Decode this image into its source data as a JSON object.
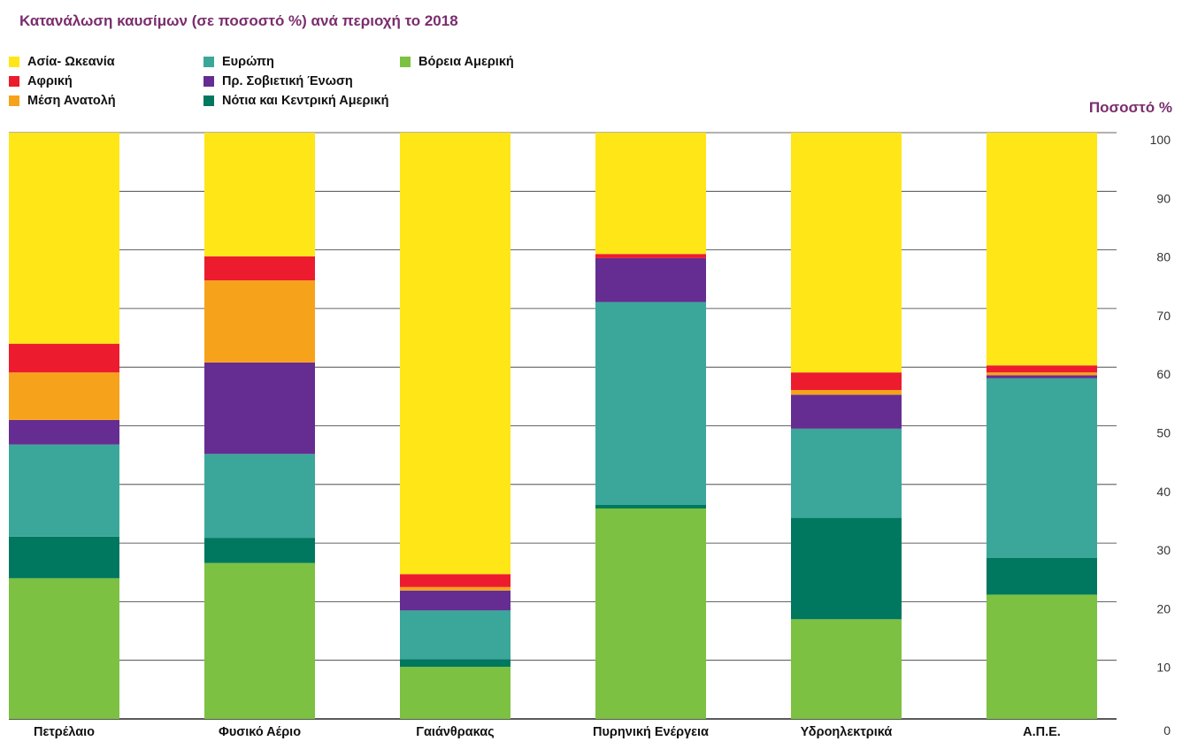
{
  "chart_data": {
    "type": "bar",
    "stacked": true,
    "title": "Κατανάλωση καυσίμων (σε ποσοστό %) ανά περιοχή το 2018",
    "ylabel": "Ποσοστό %",
    "ylim": [
      0,
      100
    ],
    "yticks": [
      0,
      10,
      20,
      30,
      40,
      50,
      60,
      70,
      80,
      90,
      100
    ],
    "grid": true,
    "legend_position": "top-left",
    "categories": [
      "Πετρέλαιο",
      "Φυσικό Αέριο",
      "Γαιάνθρακας",
      "Πυρηνική Ενέργεια",
      "Υδροηλεκτρικά",
      "Α.Π.Ε."
    ],
    "series": [
      {
        "name": "Βόρεια Αμερική",
        "color": "#7cc142",
        "values": [
          24,
          26.6,
          8.9,
          35.9,
          17,
          21.2
        ]
      },
      {
        "name": "Νότια και Κεντρική Αμερική",
        "color": "#00775f",
        "values": [
          7.1,
          4.3,
          1.3,
          0.6,
          17.3,
          6.3
        ]
      },
      {
        "name": "Ευρώπη",
        "color": "#3aa79a",
        "values": [
          15.7,
          14.3,
          8.3,
          34.6,
          15.2,
          30.6
        ]
      },
      {
        "name": "Πρ. Σοβιετική Ένωση",
        "color": "#652d91",
        "values": [
          4.2,
          15.6,
          3.4,
          7.5,
          5.8,
          0.5
        ]
      },
      {
        "name": "Μέση Ανατολή",
        "color": "#f7a21b",
        "values": [
          8.1,
          14,
          0.6,
          0,
          0.8,
          0.5
        ]
      },
      {
        "name": "Αφρική",
        "color": "#ec1c2e",
        "values": [
          4.9,
          4.1,
          2.2,
          0.7,
          3,
          1.2
        ]
      },
      {
        "name": "Ασία- Ωκεανία",
        "color": "#ffe617",
        "values": [
          36,
          21.1,
          75.3,
          20.7,
          40.9,
          39.7
        ]
      }
    ]
  },
  "legend_items": [
    {
      "label": "Ασία- Ωκεανία",
      "color": "#ffe617"
    },
    {
      "label": "Αφρική",
      "color": "#ec1c2e"
    },
    {
      "label": "Μέση Ανατολή",
      "color": "#f7a21b"
    },
    {
      "label": "Ευρώπη",
      "color": "#3aa79a"
    },
    {
      "label": "Πρ. Σοβιετική Ένωση",
      "color": "#652d91"
    },
    {
      "label": "Νότια και Κεντρική Αμερική",
      "color": "#00775f"
    },
    {
      "label": "Βόρεια Αμερική",
      "color": "#7cc142"
    }
  ]
}
